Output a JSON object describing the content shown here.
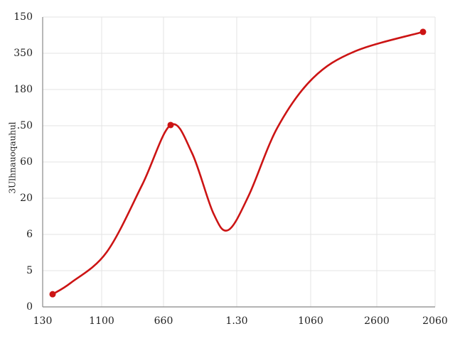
{
  "chart_data": {
    "type": "line",
    "y_label": "3Ulhnauoqauhul",
    "x": [
      14,
      40,
      90,
      140,
      180,
      210,
      240,
      261,
      290,
      330,
      380,
      440,
      535
    ],
    "series": [
      {
        "color": "#cc1414",
        "values": [
          0.35,
          0.67,
          1.51,
          3.37,
          5.02,
          4.25,
          2.59,
          2.12,
          3.08,
          4.94,
          6.31,
          7.06,
          7.59
        ],
        "marker_indices": [
          0,
          4,
          12
        ]
      }
    ],
    "xlim": [
      0,
      552
    ],
    "xticks": [
      {
        "value": 0,
        "label": "130"
      },
      {
        "value": 83,
        "label": "1100"
      },
      {
        "value": 170,
        "label": "660"
      },
      {
        "value": 273,
        "label": "1.30"
      },
      {
        "value": 377,
        "label": "1060"
      },
      {
        "value": 470,
        "label": "2600"
      },
      {
        "value": 552,
        "label": "2060"
      }
    ],
    "ylim": [
      0,
      8
    ],
    "yticks": [
      0,
      {
        "value": 1,
        "label": "5"
      },
      {
        "value": 2,
        "label": "6"
      },
      {
        "value": 3,
        "label": "20"
      },
      {
        "value": 4,
        "label": "60"
      },
      {
        "value": 5,
        "label": ".50"
      },
      {
        "value": 6,
        "label": "180"
      },
      {
        "value": 7,
        "label": "350"
      },
      {
        "value": 8,
        "label": "150"
      }
    ],
    "grid": true
  }
}
